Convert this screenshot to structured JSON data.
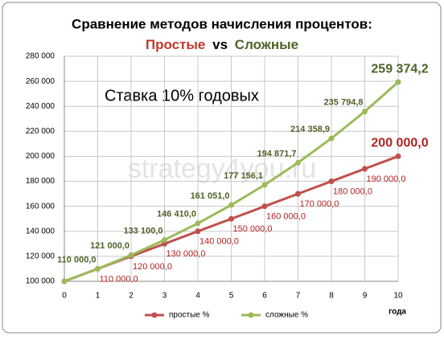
{
  "chart_data": {
    "type": "line",
    "title": "Сравнение методов начисления процентов:",
    "subtitle_parts": [
      "Простые",
      "vs",
      "Сложные"
    ],
    "annotation": "Ставка 10% годовых",
    "watermark": "strategy4you.ru",
    "x_label": "года",
    "x": [
      0,
      1,
      2,
      3,
      4,
      5,
      6,
      7,
      8,
      9,
      10
    ],
    "xlim": [
      0,
      10
    ],
    "xticks": [
      0,
      1,
      2,
      3,
      4,
      5,
      6,
      7,
      8,
      9,
      10
    ],
    "ylim": [
      100000,
      280000
    ],
    "yticks": [
      {
        "value": 100000,
        "label": "100 000"
      },
      {
        "value": 120000,
        "label": "120 000"
      },
      {
        "value": 140000,
        "label": "140 000"
      },
      {
        "value": 160000,
        "label": "160 000"
      },
      {
        "value": 180000,
        "label": "180 000"
      },
      {
        "value": 200000,
        "label": "200 000"
      },
      {
        "value": 220000,
        "label": "220 000"
      },
      {
        "value": 240000,
        "label": "240 000"
      },
      {
        "value": 260000,
        "label": "260 000"
      },
      {
        "value": 280000,
        "label": "280 000"
      }
    ],
    "grid": true,
    "legend": "bottom",
    "series": [
      {
        "name": "простые %",
        "color": "#c0504d",
        "values": [
          100000,
          110000,
          120000,
          130000,
          140000,
          150000,
          160000,
          170000,
          180000,
          190000,
          200000
        ],
        "value_labels": [
          null,
          "110 000,0",
          "120 000,0",
          "130 000,0",
          "140 000,0",
          "150 000,0",
          "160 000,0",
          "170 000,0",
          "180 000,0",
          "190 000,0",
          "200 000,0"
        ]
      },
      {
        "name": "сложные %",
        "color": "#9bbb59",
        "values": [
          100000,
          110000,
          121000,
          133100,
          146410,
          161051,
          177156.1,
          194871.7,
          214358.9,
          235794.8,
          259374.2
        ],
        "value_labels": [
          null,
          "110 000,0",
          "121 000,0",
          "133 100,0",
          "146 410,0",
          "161 051,0",
          "177 156,1",
          "194 871,7",
          "214 358,9",
          "235 794,8",
          "259 374,2"
        ]
      }
    ]
  }
}
